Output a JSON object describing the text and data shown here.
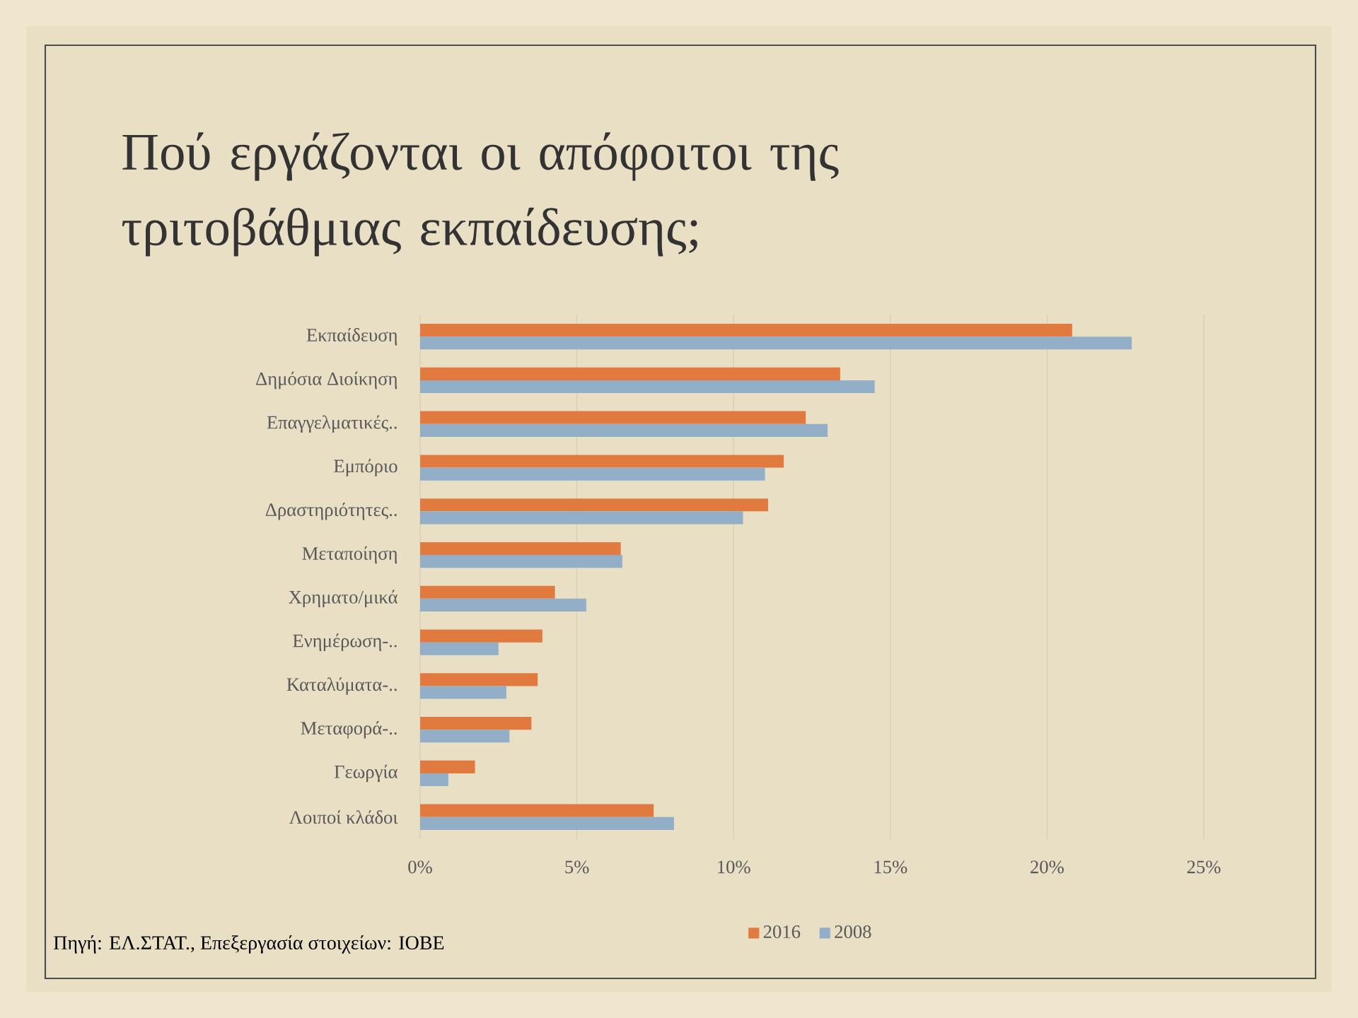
{
  "chart_data": {
    "type": "bar",
    "orientation": "horizontal",
    "title": "Πού εργάζονται οι απόφοιτοι της τριτοβάθμιας εκπαίδευσης;",
    "categories": [
      "Εκπαίδευση",
      "Δημόσια Διοίκηση",
      "Επαγγελματικές..",
      "Εμπόριο",
      "Δραστηριότητες..",
      "Μεταποίηση",
      "Χρηματο/μικά",
      "Ενημέρωση-..",
      "Καταλύματα-..",
      "Μεταφορά-..",
      "Γεωργία",
      "Λοιποί κλάδοι"
    ],
    "series": [
      {
        "name": "2016",
        "color": "#e07a3e",
        "values": [
          20.8,
          13.4,
          12.3,
          11.6,
          11.1,
          6.4,
          4.3,
          3.9,
          3.75,
          3.55,
          1.75,
          7.45
        ]
      },
      {
        "name": "2008",
        "color": "#93afc8",
        "values": [
          22.7,
          14.5,
          13.0,
          11.0,
          10.3,
          6.45,
          5.3,
          2.5,
          2.75,
          2.85,
          0.9,
          8.1
        ]
      }
    ],
    "xlim": [
      0,
      25
    ],
    "xticks": [
      {
        "value": 0,
        "label": "0%"
      },
      {
        "value": 5,
        "label": "5%"
      },
      {
        "value": 10,
        "label": "10%"
      },
      {
        "value": 15,
        "label": "15%"
      },
      {
        "value": 20,
        "label": "20%"
      },
      {
        "value": 25,
        "label": "25%"
      }
    ],
    "grid": "x",
    "legend": "bottom",
    "annotations": [
      "Πηγή: ΕΛ.ΣΤΑΤ., Επεξεργασία στοιχείων: ΙΟΒΕ"
    ]
  }
}
